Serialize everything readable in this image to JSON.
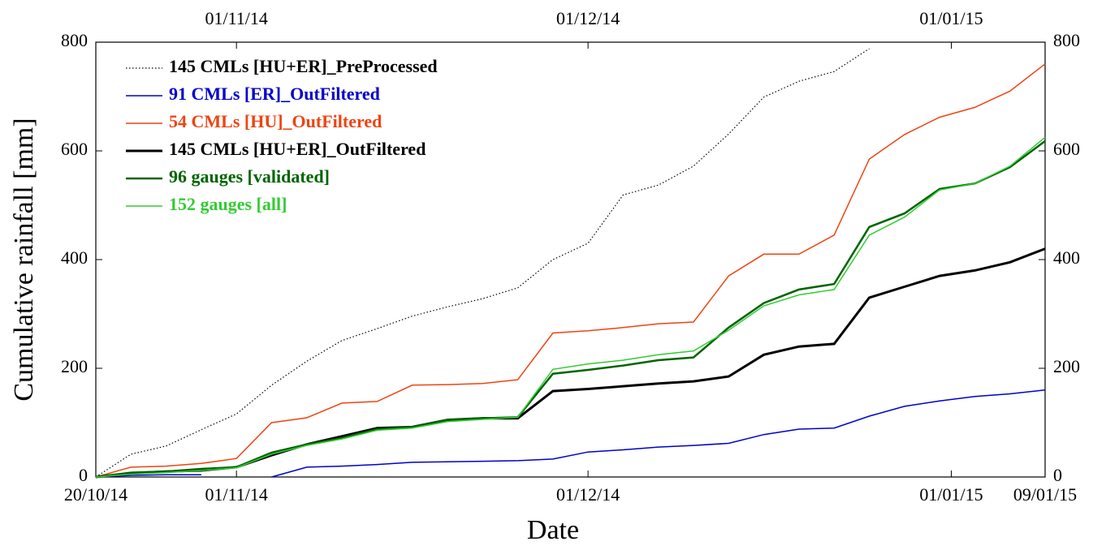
{
  "chart_data": {
    "type": "line",
    "xlabel": "Date",
    "ylabel": "Cumulative rainfall [mm]",
    "x": [
      "2014-10-20",
      "2014-10-23",
      "2014-10-26",
      "2014-10-29",
      "2014-11-01",
      "2014-11-04",
      "2014-11-07",
      "2014-11-10",
      "2014-11-13",
      "2014-11-16",
      "2014-11-19",
      "2014-11-22",
      "2014-11-25",
      "2014-11-28",
      "2014-12-01",
      "2014-12-04",
      "2014-12-07",
      "2014-12-10",
      "2014-12-13",
      "2014-12-16",
      "2014-12-19",
      "2014-12-22",
      "2014-12-25",
      "2014-12-28",
      "2014-12-31",
      "2015-01-03",
      "2015-01-06",
      "2015-01-09"
    ],
    "xlim": [
      "2014-10-20",
      "2015-01-09"
    ],
    "xticks": [
      {
        "value": "2014-10-20",
        "label": "20/10/14"
      },
      {
        "value": "2014-11-01",
        "label": "01/11/14"
      },
      {
        "value": "2014-12-01",
        "label": "01/12/14"
      },
      {
        "value": "2015-01-01",
        "label": "01/01/15"
      },
      {
        "value": "2015-01-09",
        "label": "09/01/15"
      }
    ],
    "x2ticks": [
      {
        "value": "2014-11-01",
        "label": "01/11/14"
      },
      {
        "value": "2014-12-01",
        "label": "01/12/14"
      },
      {
        "value": "2015-01-01",
        "label": "01/01/15"
      }
    ],
    "ylim": [
      0,
      800
    ],
    "yticks": [
      0,
      200,
      400,
      600,
      800
    ],
    "grid": false,
    "legend": "upper left",
    "series": [
      {
        "name": "145 CMLs [HU+ER]_PreProcessed",
        "color": "#000000",
        "style": "dotted",
        "values": [
          0,
          42,
          57,
          87,
          116,
          169,
          213,
          251,
          273,
          296,
          313,
          328,
          348,
          400,
          430,
          519,
          537,
          572,
          631,
          699,
          728,
          746,
          788,
          null,
          null,
          null,
          null,
          null
        ]
      },
      {
        "name": "91 CMLs [ER]_OutFiltered",
        "color": "#0000cc",
        "style": "solid",
        "values": [
          0,
          3,
          4,
          4,
          null,
          0,
          18,
          20,
          23,
          27,
          28,
          29,
          30,
          33,
          46,
          50,
          55,
          58,
          62,
          78,
          88,
          90,
          112,
          130,
          140,
          148,
          153,
          160
        ]
      },
      {
        "name": "54 CMLs [HU]_OutFiltered",
        "color": "#ee4411",
        "style": "solid",
        "values": [
          0,
          18,
          20,
          25,
          34,
          100,
          109,
          136,
          139,
          169,
          170,
          172,
          179,
          265,
          269,
          275,
          282,
          285,
          370,
          410,
          410,
          445,
          585,
          630,
          662,
          680,
          710,
          760
        ]
      },
      {
        "name": "145 CMLs [HU+ER]_OutFiltered",
        "color": "#000000",
        "style": "thick",
        "values": [
          0,
          7,
          10,
          12,
          18,
          40,
          60,
          75,
          90,
          92,
          105,
          108,
          108,
          158,
          162,
          167,
          172,
          176,
          185,
          225,
          240,
          245,
          330,
          350,
          370,
          380,
          395,
          420
        ]
      },
      {
        "name": "96 gauges [validated]",
        "color": "#006400",
        "style": "medium",
        "values": [
          0,
          8,
          10,
          15,
          18,
          45,
          60,
          72,
          88,
          92,
          105,
          108,
          110,
          190,
          197,
          205,
          215,
          220,
          275,
          320,
          345,
          355,
          460,
          485,
          530,
          540,
          570,
          618
        ]
      },
      {
        "name": "152 gauges [all]",
        "color": "#33cc33",
        "style": "solid",
        "values": [
          0,
          5,
          8,
          12,
          17,
          42,
          58,
          70,
          86,
          90,
          102,
          106,
          110,
          198,
          208,
          215,
          225,
          232,
          270,
          315,
          335,
          345,
          445,
          478,
          528,
          540,
          572,
          625
        ]
      }
    ]
  }
}
